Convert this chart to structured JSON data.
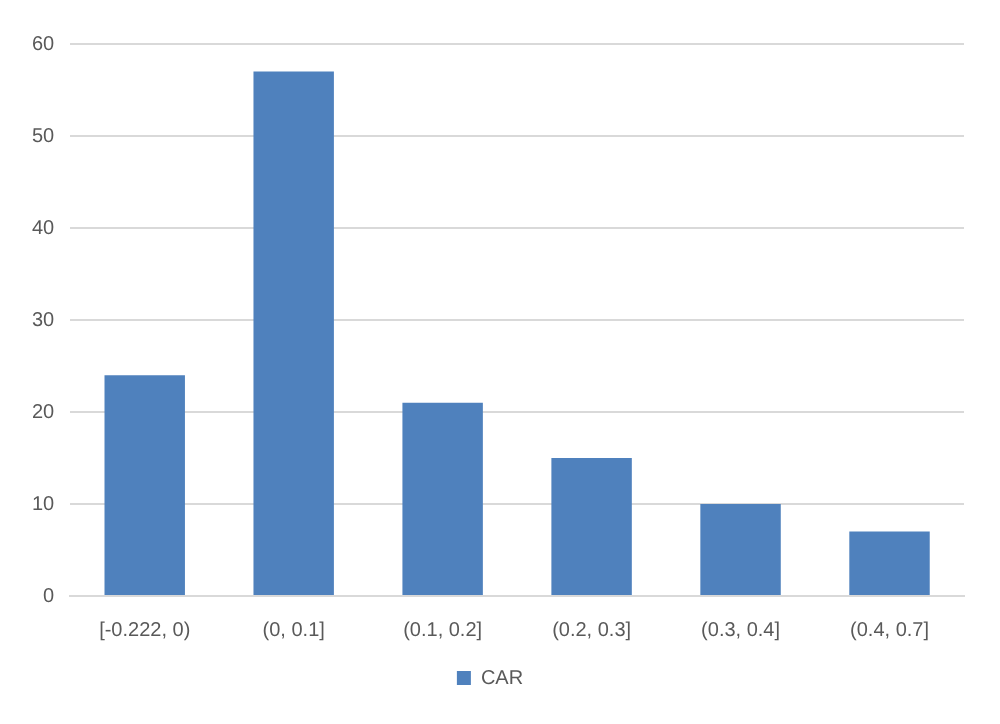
{
  "chart_data": {
    "type": "bar",
    "categories": [
      "[-0.222, 0)",
      "(0, 0.1]",
      "(0.1, 0.2]",
      "(0.2, 0.3]",
      "(0.3, 0.4]",
      "(0.4, 0.7]"
    ],
    "series": [
      {
        "name": "CAR",
        "color": "#4f81bd",
        "values": [
          24,
          57,
          21,
          15,
          10,
          7
        ]
      }
    ],
    "ylim": [
      0,
      60
    ],
    "yticks": [
      0,
      10,
      20,
      30,
      40,
      50,
      60
    ],
    "grid": "y",
    "legend": "bottom"
  }
}
